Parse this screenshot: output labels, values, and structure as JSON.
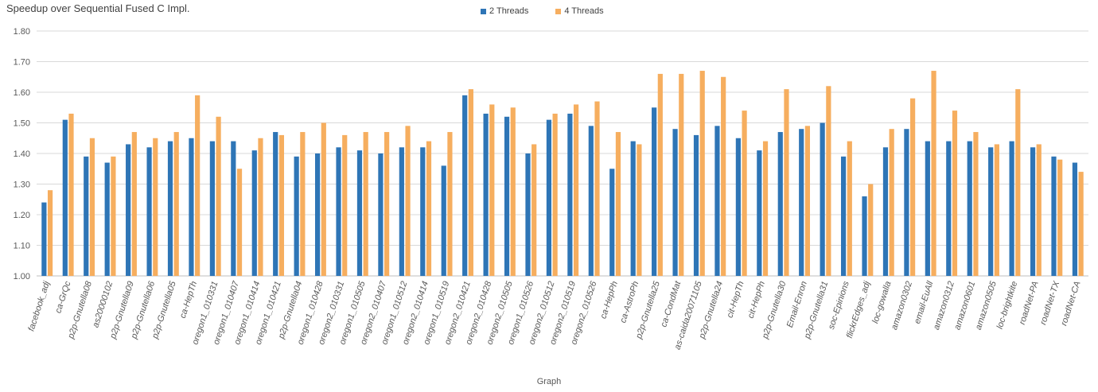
{
  "chart_data": {
    "type": "bar",
    "ylabel": "Speedup over Sequential Fused C Impl.",
    "xlabel": "Graph",
    "ylim": [
      1.0,
      1.8
    ],
    "yticks": [
      "1.00",
      "1.10",
      "1.20",
      "1.30",
      "1.40",
      "1.50",
      "1.60",
      "1.70",
      "1.80"
    ],
    "grid": true,
    "legend_position": "top-center",
    "colors": {
      "2 Threads": "#2e75b6",
      "4 Threads": "#f6ae5f"
    },
    "categories": [
      "facebook_adj",
      "ca-GrQc",
      "p2p-Gnutella08",
      "as20000102",
      "p2p-Gnutella09",
      "p2p-Gnutella06",
      "p2p-Gnutella05",
      "ca-HepTh",
      "oregon1_010331",
      "oregon1_010407",
      "oregon1_010414",
      "oregon1_010421",
      "p2p-Gnutella04",
      "oregon1_010428",
      "oregon2_010331",
      "oregon1_010505",
      "oregon2_010407",
      "oregon1_010512",
      "oregon2_010414",
      "oregon1_010519",
      "oregon2_010421",
      "oregon2_010428",
      "oregon2_010505",
      "oregon1_010526",
      "oregon2_010512",
      "oregon2_010519",
      "oregon2_010526",
      "ca-HepPh",
      "ca-AstroPh",
      "p2p-Gnutella25",
      "ca-CondMat",
      "as-caida20071105",
      "p2p-Gnutella24",
      "cit-HepTh",
      "cit-HepPh",
      "p2p-Gnutella30",
      "Email-Enron",
      "p2p-Gnutella31",
      "soc-Epinions",
      "flickrEdges_adj",
      "loc-gowalla",
      "amazon0302",
      "email-EuAll",
      "amazon0312",
      "amazon0601",
      "amazon0505",
      "loc-brightkite",
      "roadNet-PA",
      "roadNet-TX",
      "roadNet-CA"
    ],
    "series": [
      {
        "name": "2 Threads",
        "values": [
          1.24,
          1.51,
          1.39,
          1.37,
          1.43,
          1.42,
          1.44,
          1.45,
          1.44,
          1.44,
          1.41,
          1.47,
          1.39,
          1.4,
          1.42,
          1.41,
          1.4,
          1.42,
          1.42,
          1.36,
          1.59,
          1.53,
          1.52,
          1.4,
          1.51,
          1.53,
          1.49,
          1.35,
          1.44,
          1.55,
          1.48,
          1.46,
          1.49,
          1.45,
          1.41,
          1.47,
          1.48,
          1.5,
          1.39,
          1.26,
          1.42,
          1.48,
          1.44,
          1.44,
          1.44,
          1.42,
          1.44,
          1.42,
          1.39,
          1.37
        ]
      },
      {
        "name": "4 Threads",
        "values": [
          1.28,
          1.53,
          1.45,
          1.39,
          1.47,
          1.45,
          1.47,
          1.59,
          1.52,
          1.35,
          1.45,
          1.46,
          1.47,
          1.5,
          1.46,
          1.47,
          1.47,
          1.49,
          1.44,
          1.47,
          1.61,
          1.56,
          1.55,
          1.43,
          1.53,
          1.56,
          1.57,
          1.47,
          1.43,
          1.66,
          1.66,
          1.67,
          1.65,
          1.54,
          1.44,
          1.61,
          1.49,
          1.62,
          1.44,
          1.3,
          1.48,
          1.58,
          1.67,
          1.54,
          1.47,
          1.43,
          1.61,
          1.43,
          1.38,
          1.34
        ]
      }
    ]
  }
}
